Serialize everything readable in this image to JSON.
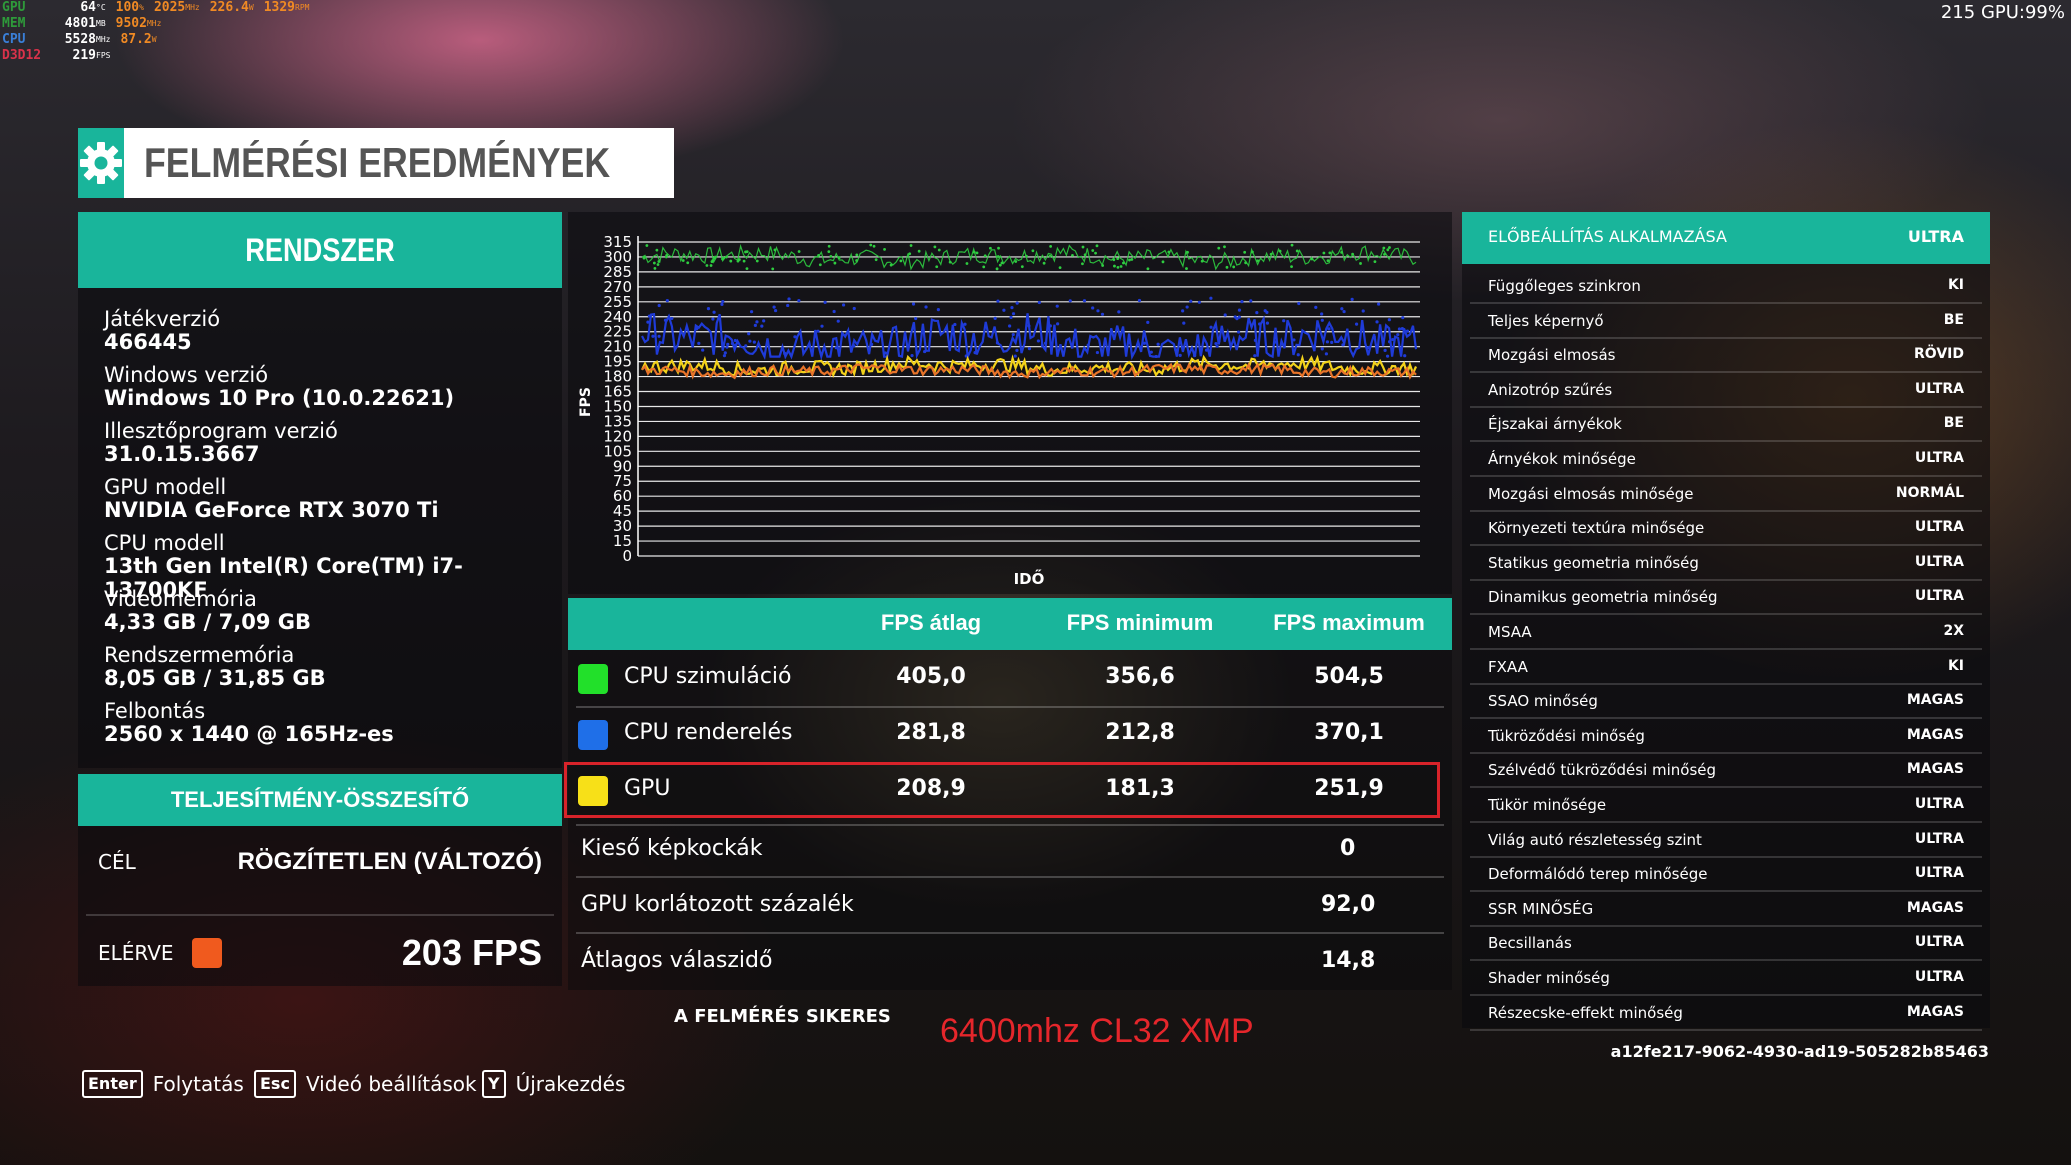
{
  "overlay": {
    "rows": [
      {
        "k": "GPU",
        "k_color": "#2e9a3a",
        "v": "64",
        "u": "°C",
        "o": "100",
        "ou": "%",
        "o2": "2025",
        "o2u": "MHz",
        "o3": "226.4",
        "o3u": "W",
        "o4": "1329",
        "o4u": "RPM"
      },
      {
        "k": "MEM",
        "k_color": "#2e9a3a",
        "v": "4801",
        "u": "MB",
        "o": "9502",
        "ou": "MHz"
      },
      {
        "k": "CPU",
        "k_color": "#3a7fd8",
        "v": "5528",
        "u": "MHz",
        "o": "87.2",
        "ou": "W"
      },
      {
        "k": "D3D12",
        "k_color": "#d8324a",
        "v": "219",
        "u": "FPS"
      }
    ],
    "top_right": "215 GPU:99%"
  },
  "title": "FELMÉRÉSI EREDMÉNYEK",
  "system": {
    "header": "RENDSZER",
    "items": [
      {
        "label": "Játékverzió",
        "value": "466445"
      },
      {
        "label": "Windows verzió",
        "value": "Windows 10 Pro (10.0.22621)"
      },
      {
        "label": "Illesztőprogram verzió",
        "value": "31.0.15.3667"
      },
      {
        "label": "GPU modell",
        "value": "NVIDIA GeForce RTX 3070 Ti"
      },
      {
        "label": "CPU modell",
        "value": "13th Gen Intel(R) Core(TM) i7-13700KF"
      },
      {
        "label": "Videomemória",
        "value": "4,33 GB / 7,09 GB"
      },
      {
        "label": "Rendszermemória",
        "value": "8,05 GB / 31,85 GB"
      },
      {
        "label": "Felbontás",
        "value": "2560 x 1440 @ 165Hz-es"
      }
    ]
  },
  "performance": {
    "header": "TELJESÍTMÉNY-ÖSSZESÍTŐ",
    "target_label": "CÉL",
    "target_value": "RÖGZÍTETLEN (VÁLTOZÓ)",
    "achieved_label": "ELÉRVE",
    "achieved_color": "#f05a1e",
    "achieved_value": "203 FPS"
  },
  "chart_data": {
    "type": "line",
    "ylabel": "FPS",
    "xlabel": "IDŐ",
    "ylim": [
      0,
      315
    ],
    "yticks": [
      "315",
      "300",
      "285",
      "270",
      "255",
      "240",
      "225",
      "210",
      "195",
      "180",
      "165",
      "150",
      "135",
      "120",
      "105",
      "90",
      "75",
      "60",
      "45",
      "30",
      "15",
      "0"
    ],
    "grid": true,
    "series": [
      {
        "color": "#2ecc40",
        "level_avg": 300,
        "level_max": 312,
        "level_min": 288
      },
      {
        "color": "#1f3bd8",
        "level_avg": 215,
        "level_max": 260,
        "level_min": 200
      },
      {
        "color": "#f2d21b",
        "level_avg": 190,
        "level_max": 200,
        "level_min": 180
      },
      {
        "color": "#e8742a",
        "level_avg": 186,
        "level_max": 192,
        "level_min": 178
      }
    ]
  },
  "fps_table": {
    "columns": [
      "FPS átlag",
      "FPS minimum",
      "FPS maximum"
    ],
    "rows": [
      {
        "name": "CPU szimuláció",
        "color": "#22e02a",
        "avg": "405,0",
        "min": "356,6",
        "max": "504,5"
      },
      {
        "name": "CPU renderelés",
        "color": "#1f6fe8",
        "avg": "281,8",
        "min": "212,8",
        "max": "370,1"
      },
      {
        "name": "GPU",
        "color": "#f7e018",
        "avg": "208,9",
        "min": "181,3",
        "max": "251,9"
      }
    ],
    "stats": [
      {
        "name": "Kieső képkockák",
        "value": "0"
      },
      {
        "name": "GPU korlátozott százalék",
        "value": "92,0"
      },
      {
        "name": "Átlagos válaszidő",
        "value": "14,8"
      }
    ]
  },
  "success_text": "A FELMÉRÉS SIKERES",
  "annotation": "6400mhz CL32 XMP",
  "settings": {
    "header_label": "ELŐBEÁLLÍTÁS ALKALMAZÁSA",
    "header_value": "ULTRA",
    "rows": [
      {
        "label": "Függőleges szinkron",
        "value": "KI"
      },
      {
        "label": "Teljes képernyő",
        "value": "BE"
      },
      {
        "label": "Mozgási elmosás",
        "value": "RÖVID"
      },
      {
        "label": "Anizotróp szűrés",
        "value": "ULTRA"
      },
      {
        "label": "Éjszakai árnyékok",
        "value": "BE"
      },
      {
        "label": "Árnyékok minősége",
        "value": "ULTRA"
      },
      {
        "label": "Mozgási elmosás minősége",
        "value": "NORMÁL"
      },
      {
        "label": "Környezeti textúra minősége",
        "value": "ULTRA"
      },
      {
        "label": "Statikus geometria minőség",
        "value": "ULTRA"
      },
      {
        "label": "Dinamikus geometria minőség",
        "value": "ULTRA"
      },
      {
        "label": "MSAA",
        "value": "2X"
      },
      {
        "label": "FXAA",
        "value": "KI"
      },
      {
        "label": "SSAO minőség",
        "value": "MAGAS"
      },
      {
        "label": "Tükröződési minőség",
        "value": "MAGAS"
      },
      {
        "label": "Szélvédő tükröződési minőség",
        "value": "MAGAS"
      },
      {
        "label": "Tükör minősége",
        "value": "ULTRA"
      },
      {
        "label": "Világ autó részletesség szint",
        "value": "ULTRA"
      },
      {
        "label": "Deformálódó terep minősége",
        "value": "ULTRA"
      },
      {
        "label": "SSR MINŐSÉG",
        "value": "MAGAS"
      },
      {
        "label": "Becsillanás",
        "value": "ULTRA"
      },
      {
        "label": "Shader minőség",
        "value": "ULTRA"
      },
      {
        "label": "Részecske-effekt minőség",
        "value": "MAGAS"
      }
    ],
    "uuid": "a12fe217-9062-4930-ad19-505282b85463"
  },
  "footer": [
    {
      "key": "Enter",
      "label": "Folytatás"
    },
    {
      "key": "Esc",
      "label": "Videó beállítások"
    },
    {
      "key": "Y",
      "label": "Újrakezdés"
    }
  ]
}
